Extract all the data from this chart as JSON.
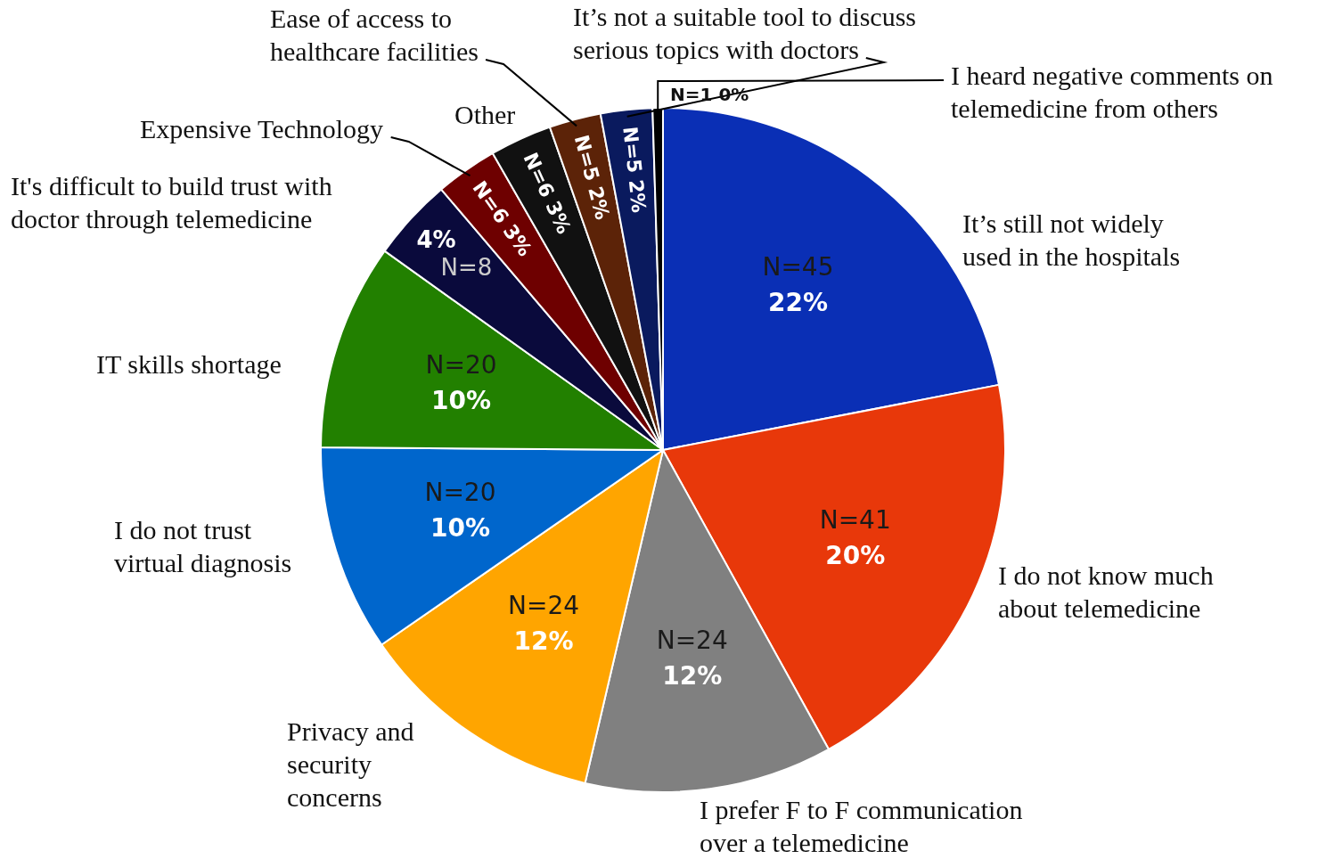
{
  "chart_data": {
    "type": "pie",
    "categories": [
      "It’s still not widely used in the hospitals",
      "I do not know much about telemedicine",
      "I prefer F to F communication over a telemedicine",
      "Privacy and security concerns",
      "I do not trust virtual diagnosis",
      "IT skills shortage",
      "It's difficult to build trust with doctor through telemedicine",
      "Expensive Technology",
      "Other",
      "Ease of access to healthcare facilities",
      "It’s not a suitable tool to discuss serious topics with doctors",
      "I heard negative comments on telemedicine from others"
    ],
    "values": [
      45,
      41,
      24,
      24,
      20,
      20,
      8,
      6,
      6,
      5,
      5,
      1
    ],
    "colors": [
      "#0a2fb5",
      "#e8380a",
      "#808080",
      "#ffa500",
      "#0066cc",
      "#228000",
      "#0a0a3c",
      "#6e0000",
      "#111111",
      "#5c2308",
      "#0a1a5e",
      "#000000"
    ],
    "value_labels": [
      "N=45\n22%",
      "N=41\n20%",
      "N=24\n12%",
      "N=24\n12%",
      "N=20\n10%",
      "N=20\n10%",
      "N=8\n4%",
      "N=6\n3%",
      "N=6\n3%",
      "N=5\n2%",
      "N=5\n2%",
      "N=1\n0%"
    ],
    "legend": false
  }
}
